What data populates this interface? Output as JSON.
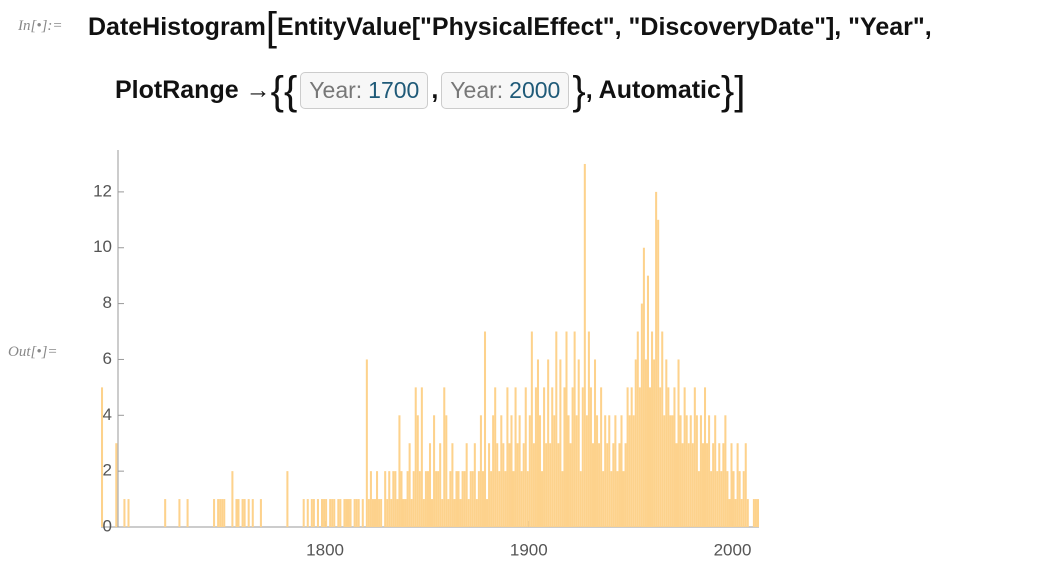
{
  "input_label": "In[•]:=",
  "output_label": "Out[•]=",
  "input": {
    "line1": [
      "DateHistogram",
      "[",
      "EntityValue[\"PhysicalEffect\", \"DiscoveryDate\"], \"Year\","
    ],
    "line2": [
      "PlotRange →",
      "{",
      "{",
      {
        "label": "Year:",
        "value": 1700
      },
      ",",
      {
        "label": "Year:",
        "value": 2000
      },
      "}",
      ", Automatic",
      "}",
      "]"
    ]
  },
  "chart_data": {
    "type": "histogram",
    "color": "#fdd28c",
    "bins": [
      1690,
      1691,
      1692,
      1693,
      1694,
      1695,
      1696,
      1697,
      1698,
      1699,
      1700,
      1701,
      1702,
      1703,
      1704,
      1705,
      1706,
      1707,
      1708,
      1709,
      1710,
      1711,
      1712,
      1713,
      1714,
      1715,
      1716,
      1717,
      1718,
      1719,
      1720,
      1721,
      1722,
      1723,
      1724,
      1725,
      1726,
      1727,
      1728,
      1729,
      1730,
      1731,
      1732,
      1733,
      1734,
      1735,
      1736,
      1737,
      1738,
      1739,
      1740,
      1741,
      1742,
      1743,
      1744,
      1745,
      1746,
      1747,
      1748,
      1749,
      1750,
      1751,
      1752,
      1753,
      1754,
      1755,
      1756,
      1757,
      1758,
      1759,
      1760,
      1761,
      1762,
      1763,
      1764,
      1765,
      1766,
      1767,
      1768,
      1769,
      1770,
      1771,
      1772,
      1773,
      1774,
      1775,
      1776,
      1777,
      1778,
      1779,
      1780,
      1781,
      1782,
      1783,
      1784,
      1785,
      1786,
      1787,
      1788,
      1789,
      1790,
      1791,
      1792,
      1793,
      1794,
      1795,
      1796,
      1797,
      1798,
      1799,
      1800,
      1801,
      1802,
      1803,
      1804,
      1805,
      1806,
      1807,
      1808,
      1809,
      1810,
      1811,
      1812,
      1813,
      1814,
      1815,
      1816,
      1817,
      1818,
      1819,
      1820,
      1821,
      1822,
      1823,
      1824,
      1825,
      1826,
      1827,
      1828,
      1829,
      1830,
      1831,
      1832,
      1833,
      1834,
      1835,
      1836,
      1837,
      1838,
      1839,
      1840,
      1841,
      1842,
      1843,
      1844,
      1845,
      1846,
      1847,
      1848,
      1849,
      1850,
      1851,
      1852,
      1853,
      1854,
      1855,
      1856,
      1857,
      1858,
      1859,
      1860,
      1861,
      1862,
      1863,
      1864,
      1865,
      1866,
      1867,
      1868,
      1869,
      1870,
      1871,
      1872,
      1873,
      1874,
      1875,
      1876,
      1877,
      1878,
      1879,
      1880,
      1881,
      1882,
      1883,
      1884,
      1885,
      1886,
      1887,
      1888,
      1889,
      1890,
      1891,
      1892,
      1893,
      1894,
      1895,
      1896,
      1897,
      1898,
      1899,
      1900,
      1901,
      1902,
      1903,
      1904,
      1905,
      1906,
      1907,
      1908,
      1909,
      1910,
      1911,
      1912,
      1913,
      1914,
      1915,
      1916,
      1917,
      1918,
      1919,
      1920,
      1921,
      1922,
      1923,
      1924,
      1925,
      1926,
      1927,
      1928,
      1929,
      1930,
      1931,
      1932,
      1933,
      1934,
      1935,
      1936,
      1937,
      1938,
      1939,
      1940,
      1941,
      1942,
      1943,
      1944,
      1945,
      1946,
      1947,
      1948,
      1949,
      1950,
      1951,
      1952,
      1953,
      1954,
      1955,
      1956,
      1957,
      1958,
      1959,
      1960,
      1961,
      1962,
      1963,
      1964,
      1965,
      1966,
      1967,
      1968,
      1969,
      1970,
      1971,
      1972,
      1973,
      1974,
      1975,
      1976,
      1977,
      1978,
      1979,
      1980,
      1981,
      1982,
      1983,
      1984,
      1985,
      1986,
      1987,
      1988,
      1989,
      1990,
      1991,
      1992,
      1993,
      1994,
      1995,
      1996,
      1997,
      1998,
      1999,
      2000,
      2001,
      2002,
      2003,
      2004,
      2005,
      2006,
      2007,
      2008,
      2009,
      2010,
      2011,
      2012,
      2013
    ],
    "values": [
      5,
      0,
      0,
      0,
      0,
      0,
      0,
      3,
      0,
      0,
      0,
      1,
      0,
      1,
      0,
      0,
      0,
      0,
      0,
      0,
      0,
      0,
      0,
      0,
      0,
      0,
      0,
      0,
      0,
      0,
      0,
      1,
      0,
      0,
      0,
      0,
      0,
      0,
      1,
      0,
      0,
      0,
      1,
      0,
      0,
      0,
      0,
      0,
      0,
      0,
      0,
      0,
      0,
      0,
      0,
      1,
      0,
      1,
      1,
      1,
      1,
      0,
      0,
      0,
      2,
      0,
      1,
      1,
      0,
      1,
      1,
      0,
      1,
      0,
      1,
      0,
      0,
      0,
      1,
      0,
      0,
      0,
      0,
      0,
      0,
      0,
      0,
      0,
      0,
      0,
      0,
      2,
      0,
      0,
      0,
      0,
      0,
      0,
      0,
      1,
      0,
      1,
      0,
      1,
      1,
      0,
      1,
      0,
      1,
      1,
      1,
      0,
      1,
      1,
      1,
      0,
      1,
      1,
      0,
      1,
      1,
      1,
      1,
      0,
      1,
      1,
      1,
      0,
      1,
      0,
      6,
      1,
      2,
      1,
      1,
      2,
      1,
      1,
      0,
      2,
      1,
      2,
      1,
      2,
      2,
      1,
      4,
      2,
      1,
      1,
      2,
      3,
      1,
      2,
      5,
      4,
      2,
      5,
      1,
      2,
      2,
      3,
      1,
      4,
      2,
      2,
      3,
      1,
      5,
      4,
      1,
      2,
      3,
      1,
      2,
      2,
      1,
      2,
      2,
      3,
      1,
      2,
      2,
      3,
      1,
      2,
      4,
      2,
      7,
      1,
      3,
      2,
      4,
      5,
      3,
      2,
      4,
      3,
      2,
      5,
      3,
      4,
      2,
      5,
      3,
      4,
      2,
      3,
      5,
      2,
      4,
      7,
      3,
      5,
      6,
      4,
      2,
      5,
      3,
      6,
      3,
      5,
      4,
      7,
      3,
      6,
      2,
      5,
      7,
      4,
      3,
      5,
      7,
      4,
      6,
      2,
      5,
      13,
      4,
      7,
      5,
      3,
      6,
      4,
      3,
      5,
      2,
      4,
      3,
      4,
      2,
      3,
      4,
      2,
      3,
      4,
      2,
      3,
      5,
      4,
      5,
      4,
      6,
      7,
      5,
      8,
      10,
      6,
      9,
      5,
      7,
      6,
      12,
      11,
      5,
      7,
      4,
      6,
      5,
      4,
      4,
      5,
      3,
      6,
      4,
      3,
      5,
      4,
      3,
      4,
      3,
      5,
      4,
      2,
      4,
      3,
      5,
      3,
      4,
      2,
      3,
      4,
      2,
      3,
      2,
      3,
      4,
      2,
      1,
      3,
      2,
      1,
      3,
      2,
      1,
      2,
      3,
      1,
      0,
      0,
      1,
      1,
      1
    ],
    "xlim": [
      1690,
      2013
    ],
    "xticks": [
      1800,
      1900,
      2000
    ],
    "ylim": [
      0,
      13.5
    ],
    "yticks": [
      0,
      2,
      4,
      6,
      8,
      10,
      12
    ]
  }
}
